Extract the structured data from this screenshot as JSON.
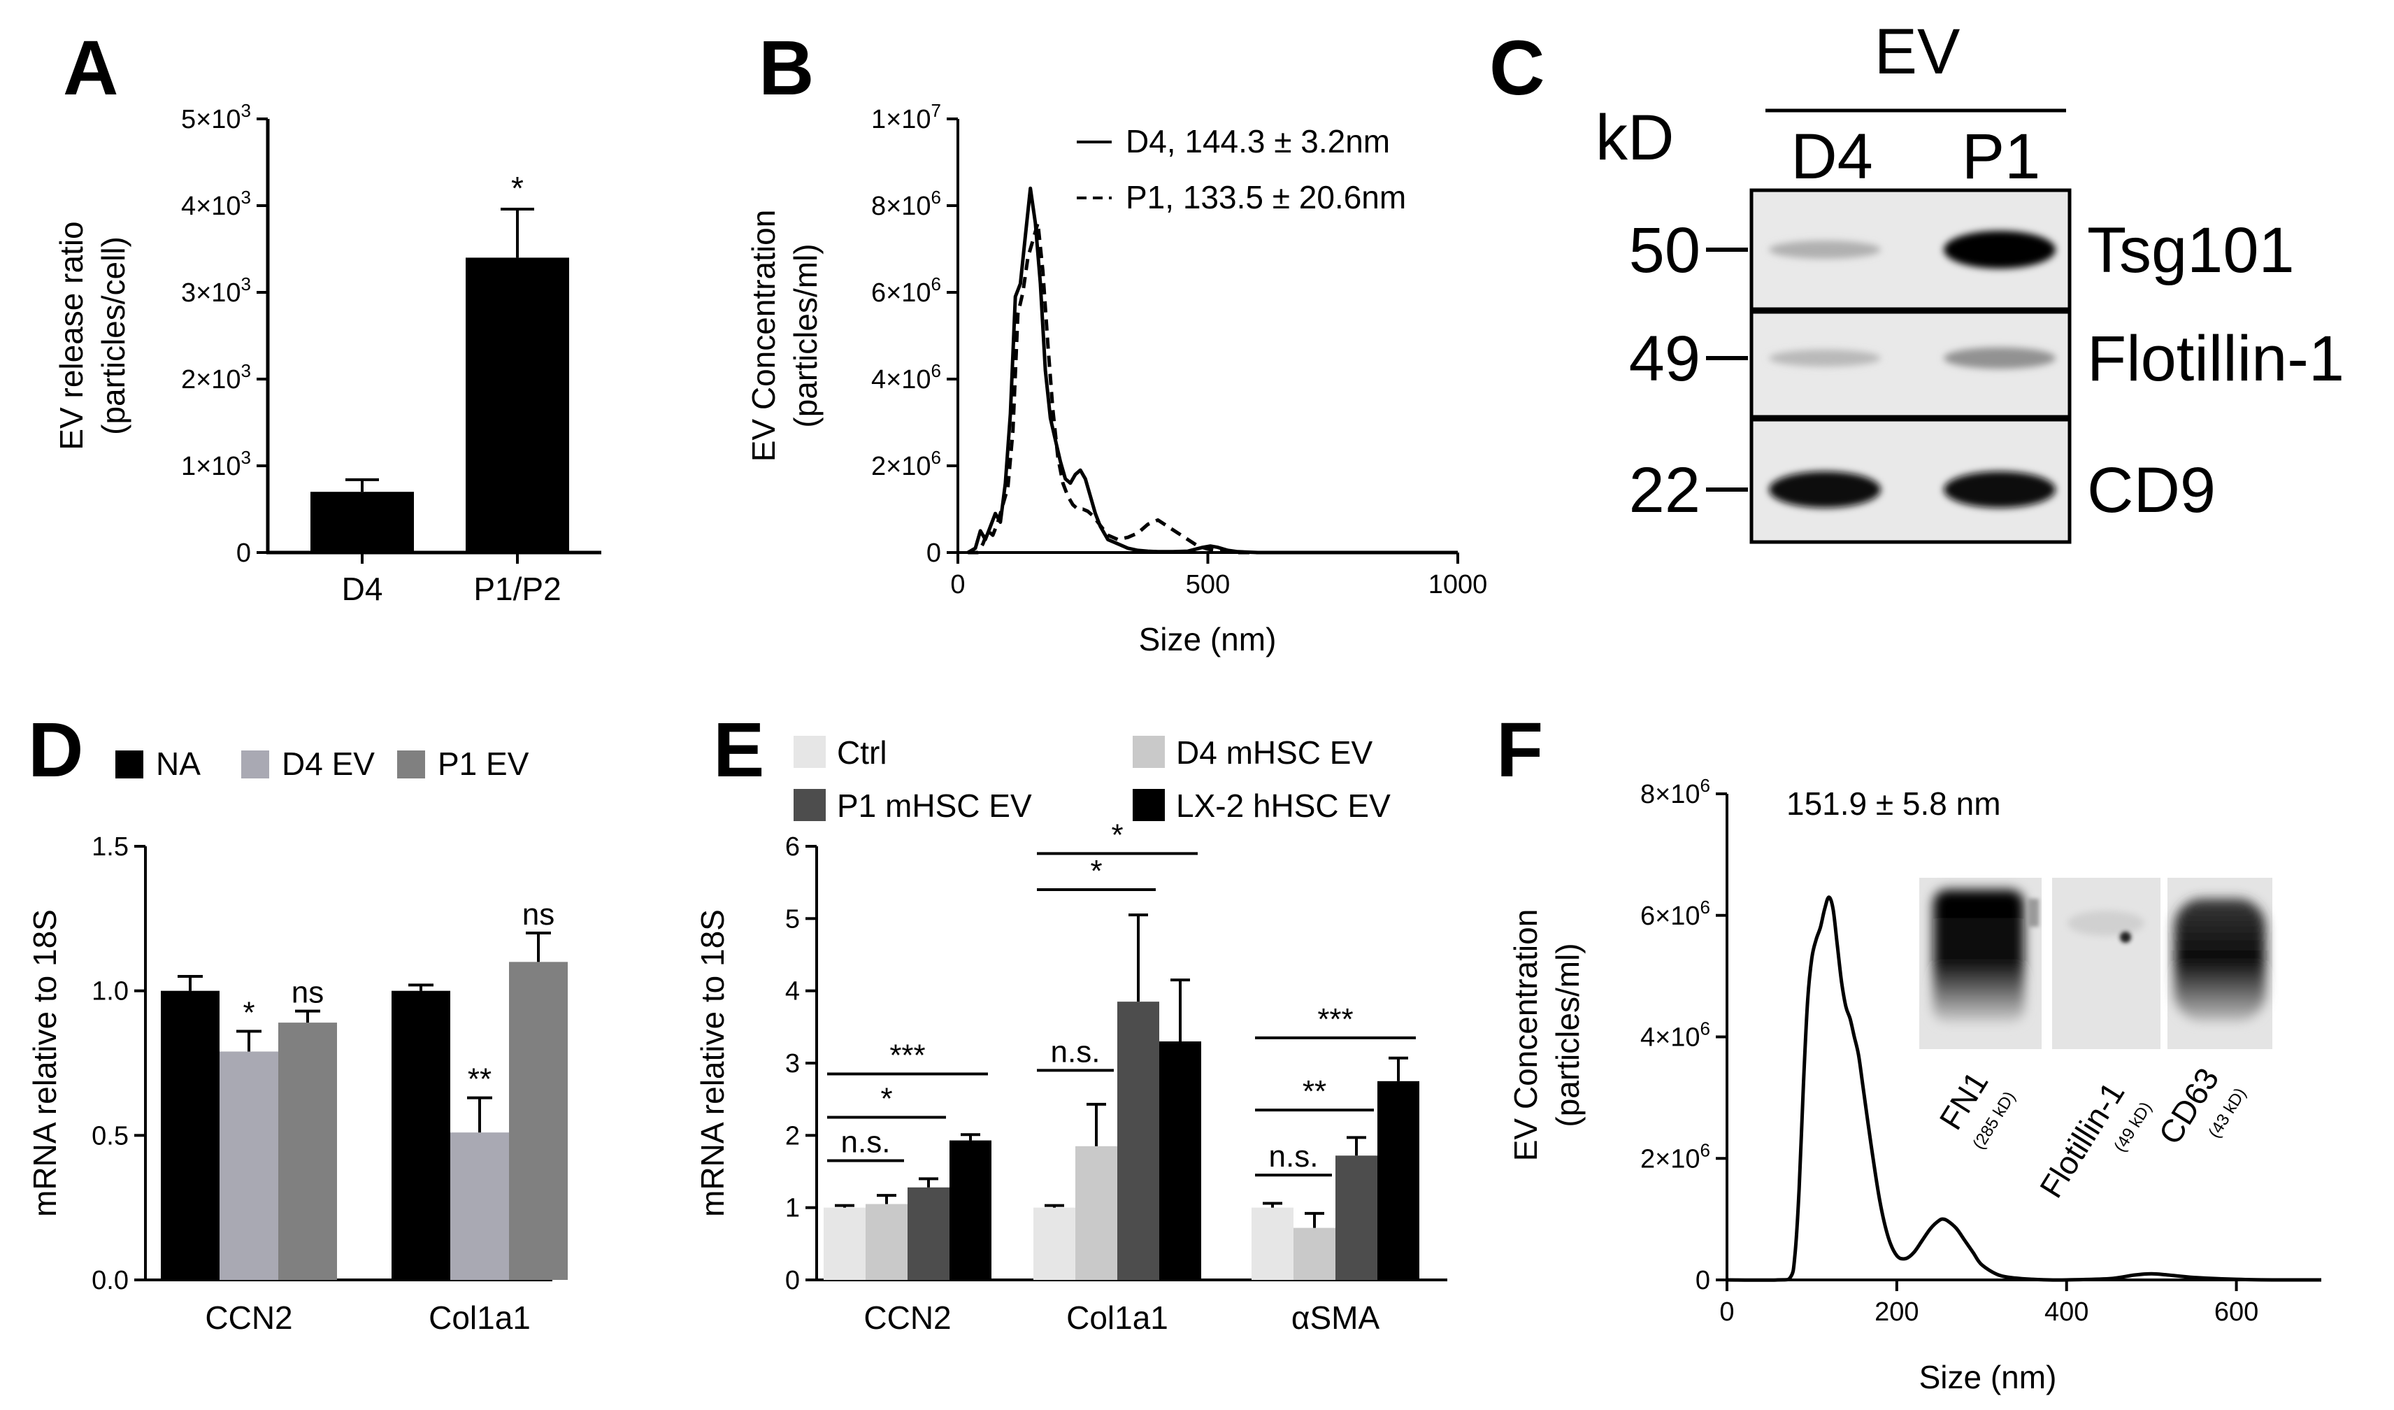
{
  "chart_data": [
    {
      "panel": "A",
      "type": "bar",
      "categories": [
        "D4",
        "P1/P2"
      ],
      "values": [
        700,
        3400
      ],
      "errors": [
        140,
        560
      ],
      "significance": [
        "",
        "*"
      ],
      "ylabel_line1": "EV release ratio",
      "ylabel_line2": "(particles/cell)",
      "ylim": [
        0,
        5000
      ],
      "yticks": [
        {
          "v": 0,
          "mant": "0",
          "exp": ""
        },
        {
          "v": 1000,
          "mant": "1×10",
          "exp": "3"
        },
        {
          "v": 2000,
          "mant": "2×10",
          "exp": "3"
        },
        {
          "v": 3000,
          "mant": "3×10",
          "exp": "3"
        },
        {
          "v": 4000,
          "mant": "4×10",
          "exp": "3"
        },
        {
          "v": 5000,
          "mant": "5×10",
          "exp": "3"
        }
      ]
    },
    {
      "panel": "B",
      "type": "line",
      "xlabel": "Size (nm)",
      "ylabel_line1": "EV Concentration",
      "ylabel_line2": "(particles/ml)",
      "xlim": [
        0,
        1000
      ],
      "ylim": [
        0,
        10000000
      ],
      "xticks": [
        0,
        500,
        1000
      ],
      "yticks": [
        {
          "v": 0,
          "mant": "0",
          "exp": ""
        },
        {
          "v": 2000000,
          "mant": "2×10",
          "exp": "6"
        },
        {
          "v": 4000000,
          "mant": "4×10",
          "exp": "6"
        },
        {
          "v": 6000000,
          "mant": "6×10",
          "exp": "6"
        },
        {
          "v": 8000000,
          "mant": "8×10",
          "exp": "6"
        },
        {
          "v": 10000000,
          "mant": "1×10",
          "exp": "7"
        }
      ],
      "series": [
        {
          "name": "D4",
          "legend": "D4,  144.3 ± 3.2nm",
          "dash": false,
          "x": [
            20,
            35,
            45,
            55,
            65,
            75,
            85,
            95,
            105,
            115,
            125,
            135,
            145,
            155,
            165,
            175,
            185,
            195,
            205,
            215,
            225,
            235,
            245,
            255,
            265,
            275,
            285,
            300,
            320,
            340,
            360,
            380,
            400,
            430,
            460,
            490,
            505,
            520,
            540,
            560,
            600,
            700,
            1000
          ],
          "y": [
            0,
            0.1,
            0.5,
            0.3,
            0.6,
            0.9,
            0.7,
            1.6,
            3.2,
            5.9,
            6.2,
            7.3,
            8.4,
            7.6,
            6.2,
            4.2,
            3.1,
            2.6,
            2.1,
            1.7,
            1.6,
            1.8,
            1.9,
            1.7,
            1.3,
            0.9,
            0.6,
            0.3,
            0.2,
            0.1,
            0.05,
            0.03,
            0.02,
            0.02,
            0.03,
            0.12,
            0.15,
            0.12,
            0.05,
            0.02,
            0,
            0,
            0
          ]
        },
        {
          "name": "P1",
          "legend": "P1, 133.5 ± 20.6nm",
          "dash": true,
          "x": [
            20,
            40,
            50,
            60,
            70,
            80,
            90,
            100,
            110,
            120,
            130,
            140,
            150,
            160,
            170,
            180,
            190,
            200,
            210,
            220,
            230,
            240,
            250,
            260,
            270,
            280,
            290,
            300,
            320,
            340,
            360,
            380,
            400,
            420,
            440,
            460,
            480,
            500,
            520,
            540,
            560,
            600,
            700,
            1000
          ],
          "y": [
            0,
            0,
            0.2,
            0.5,
            0.4,
            0.7,
            1.1,
            1.5,
            2.8,
            5.5,
            6.0,
            6.8,
            7.2,
            7.6,
            6.5,
            4.8,
            3.3,
            2.2,
            1.6,
            1.3,
            1.1,
            1.0,
            1.0,
            0.95,
            0.85,
            0.7,
            0.55,
            0.4,
            0.3,
            0.35,
            0.45,
            0.65,
            0.75,
            0.6,
            0.45,
            0.3,
            0.15,
            0.08,
            0.04,
            0.02,
            0,
            0,
            0,
            0
          ]
        }
      ]
    },
    {
      "panel": "C",
      "type": "western-blot",
      "title": "EV",
      "unit_label": "kD",
      "lanes": [
        "D4",
        "P1"
      ],
      "bands": [
        {
          "marker": "50",
          "protein": "Tsg101",
          "intensity": [
            0.22,
            1.0
          ]
        },
        {
          "marker": "49",
          "protein": "Flotillin-1",
          "intensity": [
            0.18,
            0.35
          ]
        },
        {
          "marker": "22",
          "protein": "CD9",
          "intensity": [
            0.95,
            0.95
          ]
        }
      ]
    },
    {
      "panel": "D",
      "type": "bar",
      "categories": [
        "CCN2",
        "Col1a1"
      ],
      "ylabel": "mRNA relative to 18S",
      "ylim": [
        0,
        1.5
      ],
      "yticks": [
        "0.0",
        "0.5",
        "1.0",
        "1.5"
      ],
      "series": [
        {
          "name": "NA",
          "color": "#000000",
          "values": [
            1.0,
            1.0
          ],
          "errors": [
            0.05,
            0.02
          ],
          "significance": [
            "",
            ""
          ]
        },
        {
          "name": "D4 EV",
          "color": "#a9a9b3",
          "values": [
            0.79,
            0.51
          ],
          "errors": [
            0.07,
            0.12
          ],
          "significance": [
            "*",
            "**"
          ]
        },
        {
          "name": "P1 EV",
          "color": "#808080",
          "values": [
            0.89,
            1.1
          ],
          "errors": [
            0.04,
            0.1
          ],
          "significance": [
            "ns",
            "ns"
          ]
        }
      ]
    },
    {
      "panel": "E",
      "type": "bar",
      "categories": [
        "CCN2",
        "Col1a1",
        "αSMA"
      ],
      "ylabel": "mRNA relative to 18S",
      "ylim": [
        0,
        6
      ],
      "yticks": [
        "0",
        "1",
        "2",
        "3",
        "4",
        "5",
        "6"
      ],
      "series": [
        {
          "name": "Ctrl",
          "color": "#e6e6e6",
          "values": [
            1.0,
            1.0,
            1.0
          ],
          "errors": [
            0.03,
            0.03,
            0.06
          ]
        },
        {
          "name": "D4 mHSC EV",
          "color": "#c9c9c9",
          "values": [
            1.05,
            1.85,
            0.72
          ],
          "errors": [
            0.12,
            0.58,
            0.2
          ]
        },
        {
          "name": "P1 mHSC EV",
          "color": "#4d4d4d",
          "values": [
            1.28,
            3.85,
            1.72
          ],
          "errors": [
            0.12,
            1.2,
            0.25
          ]
        },
        {
          "name": "LX-2 hHSC EV",
          "color": "#000000",
          "values": [
            1.93,
            3.3,
            2.75
          ],
          "errors": [
            0.08,
            0.85,
            0.32
          ]
        }
      ],
      "comparisons": [
        {
          "category": 0,
          "from": 0,
          "to": 1,
          "label": "n.s.",
          "level": 1.65
        },
        {
          "category": 0,
          "from": 0,
          "to": 2,
          "label": "*",
          "level": 2.25
        },
        {
          "category": 0,
          "from": 0,
          "to": 3,
          "label": "***",
          "level": 2.85
        },
        {
          "category": 1,
          "from": 0,
          "to": 1,
          "label": "n.s.",
          "level": 2.9
        },
        {
          "category": 1,
          "from": 0,
          "to": 2,
          "label": "*",
          "level": 5.4
        },
        {
          "category": 1,
          "from": 0,
          "to": 3,
          "label": "*",
          "level": 5.9
        },
        {
          "category": 2,
          "from": 0,
          "to": 1,
          "label": "n.s.",
          "level": 1.45
        },
        {
          "category": 2,
          "from": 0,
          "to": 2,
          "label": "**",
          "level": 2.35
        },
        {
          "category": 2,
          "from": 0,
          "to": 3,
          "label": "***",
          "level": 3.35
        }
      ]
    },
    {
      "panel": "F",
      "type": "line",
      "annotation": "151.9 ± 5.8 nm",
      "xlabel": "Size (nm)",
      "ylabel_line1": "EV Concentration",
      "ylabel_line2": "(particles/ml)",
      "xlim": [
        0,
        700
      ],
      "ylim": [
        0,
        8000000
      ],
      "xticks": [
        0,
        200,
        400,
        600
      ],
      "yticks": [
        {
          "v": 0,
          "mant": "0",
          "exp": ""
        },
        {
          "v": 2000000,
          "mant": "2×10",
          "exp": "6"
        },
        {
          "v": 4000000,
          "mant": "4×10",
          "exp": "6"
        },
        {
          "v": 6000000,
          "mant": "6×10",
          "exp": "6"
        },
        {
          "v": 8000000,
          "mant": "8×10",
          "exp": "6"
        }
      ],
      "series": [
        {
          "name": "EV",
          "x": [
            0,
            60,
            75,
            80,
            85,
            90,
            95,
            100,
            105,
            110,
            115,
            120,
            125,
            130,
            135,
            140,
            145,
            150,
            155,
            160,
            170,
            180,
            190,
            200,
            210,
            220,
            230,
            240,
            250,
            255,
            260,
            270,
            280,
            290,
            300,
            320,
            340,
            360,
            380,
            400,
            450,
            480,
            500,
            520,
            550,
            600,
            650,
            700
          ],
          "y": [
            0,
            0,
            0.05,
            0.4,
            1.5,
            3.2,
            4.6,
            5.3,
            5.6,
            5.8,
            6.1,
            6.3,
            6.1,
            5.5,
            4.9,
            4.5,
            4.3,
            4.0,
            3.7,
            3.2,
            2.2,
            1.3,
            0.7,
            0.4,
            0.35,
            0.45,
            0.65,
            0.85,
            0.98,
            1.0,
            0.97,
            0.85,
            0.65,
            0.45,
            0.25,
            0.08,
            0.03,
            0.01,
            0,
            0,
            0.02,
            0.08,
            0.1,
            0.08,
            0.04,
            0.01,
            0,
            0
          ]
        }
      ],
      "inset_blots": [
        {
          "name": "FN1",
          "size": "(285 kD)"
        },
        {
          "name": "Flotillin-1",
          "size": "(49 kD)"
        },
        {
          "name": "CD63",
          "size": "(43 kD)"
        }
      ]
    }
  ]
}
